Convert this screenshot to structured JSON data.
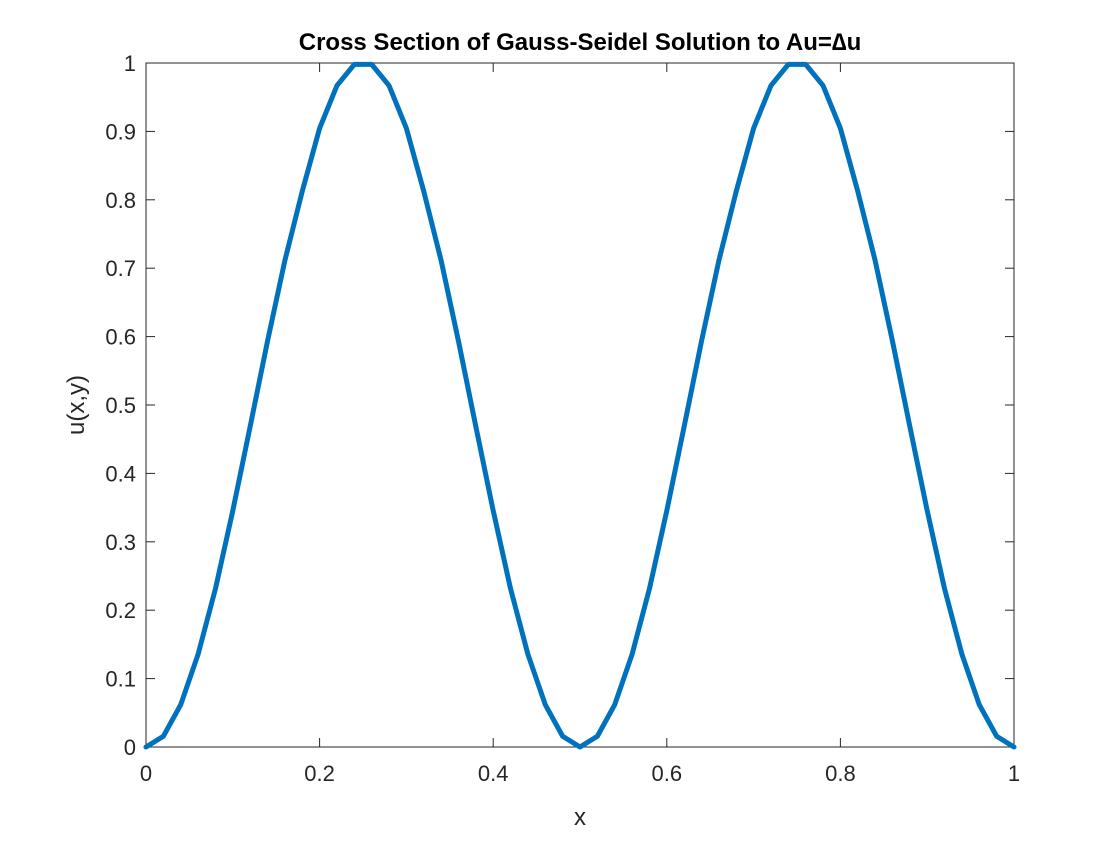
{
  "chart_data": {
    "type": "line",
    "title": "Cross Section of Gauss-Seidel Solution to Au=∆u",
    "xlabel": "x",
    "ylabel": "u(x,y)",
    "xlim": [
      0,
      1
    ],
    "ylim": [
      0,
      1
    ],
    "x_ticks": [
      "0",
      "0.2",
      "0.4",
      "0.6",
      "0.8",
      "1"
    ],
    "y_ticks": [
      "0",
      "0.1",
      "0.2",
      "0.3",
      "0.4",
      "0.5",
      "0.6",
      "0.7",
      "0.8",
      "0.9",
      "1"
    ],
    "x_tick_values": [
      0,
      0.2,
      0.4,
      0.6,
      0.8,
      1
    ],
    "y_tick_values": [
      0,
      0.1,
      0.2,
      0.3,
      0.4,
      0.5,
      0.6,
      0.7,
      0.8,
      0.9,
      1
    ],
    "grid": false,
    "box": true,
    "line_color": "#0072BD",
    "axis_color": "#262626",
    "series": [
      {
        "x": [
          0,
          0.02,
          0.04,
          0.06,
          0.08,
          0.1,
          0.12,
          0.14,
          0.16,
          0.18,
          0.2,
          0.22,
          0.24,
          0.26,
          0.28,
          0.3,
          0.32,
          0.34,
          0.36,
          0.38,
          0.4,
          0.42,
          0.44,
          0.46,
          0.48,
          0.5,
          0.52,
          0.54,
          0.56,
          0.58,
          0.6,
          0.62,
          0.64,
          0.66,
          0.68,
          0.7,
          0.72,
          0.74,
          0.76,
          0.78,
          0.8,
          0.82,
          0.84,
          0.86,
          0.88,
          0.9,
          0.92,
          0.94,
          0.96,
          0.98,
          1
        ],
        "values": [
          0,
          0.0157,
          0.0618,
          0.1355,
          0.2313,
          0.3455,
          0.4686,
          0.5933,
          0.7113,
          0.8124,
          0.9045,
          0.967,
          0.998,
          0.998,
          0.967,
          0.9045,
          0.8124,
          0.7113,
          0.5933,
          0.4686,
          0.3455,
          0.2313,
          0.1355,
          0.0618,
          0.0157,
          0,
          0.0157,
          0.0618,
          0.1355,
          0.2313,
          0.3455,
          0.4686,
          0.5933,
          0.7113,
          0.8124,
          0.9045,
          0.967,
          0.998,
          0.998,
          0.967,
          0.9045,
          0.8124,
          0.7113,
          0.5933,
          0.4686,
          0.3455,
          0.2313,
          0.1355,
          0.0618,
          0.0157,
          0
        ]
      }
    ]
  }
}
